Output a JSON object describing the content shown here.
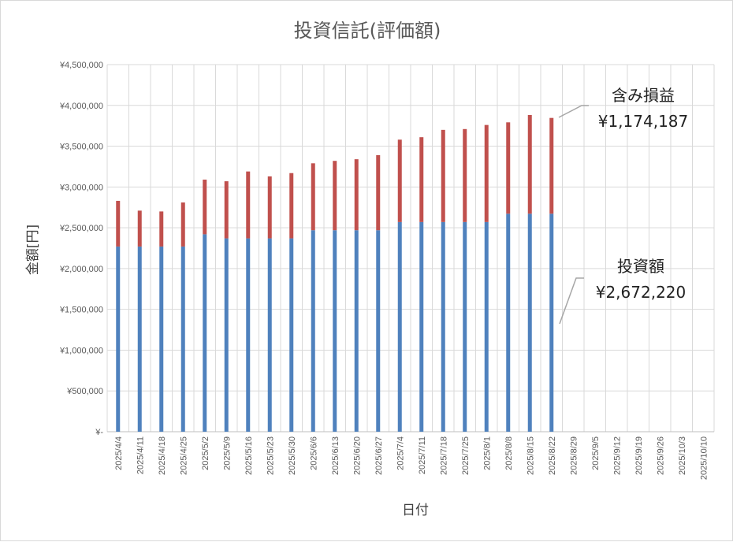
{
  "chart_data": {
    "type": "bar",
    "stacked": true,
    "title": "投資信託(評価額)",
    "xlabel": "日付",
    "ylabel": "金額[円]",
    "ylim": [
      0,
      4500000
    ],
    "yticks": [
      0,
      500000,
      1000000,
      1500000,
      2000000,
      2500000,
      3000000,
      3500000,
      4000000,
      4500000
    ],
    "ytick_labels": [
      "¥-",
      "¥500,000",
      "¥1,000,000",
      "¥1,500,000",
      "¥2,000,000",
      "¥2,500,000",
      "¥3,000,000",
      "¥3,500,000",
      "¥4,000,000",
      "¥4,500,000"
    ],
    "grid": true,
    "categories": [
      "2025/4/4",
      "2025/4/11",
      "2025/4/18",
      "2025/4/25",
      "2025/5/2",
      "2025/5/9",
      "2025/5/16",
      "2025/5/23",
      "2025/5/30",
      "2025/6/6",
      "2025/6/13",
      "2025/6/20",
      "2025/6/27",
      "2025/7/4",
      "2025/7/11",
      "2025/7/18",
      "2025/7/25",
      "2025/8/1",
      "2025/8/8",
      "2025/8/15",
      "2025/8/22",
      "2025/8/29",
      "2025/9/5",
      "2025/9/12",
      "2025/9/19",
      "2025/9/26",
      "2025/10/3",
      "2025/10/10"
    ],
    "series": [
      {
        "color": "#4f81bd",
        "values": [
          2270000,
          2270000,
          2270000,
          2270000,
          2420000,
          2370000,
          2370000,
          2370000,
          2370000,
          2470000,
          2470000,
          2470000,
          2470000,
          2570000,
          2570000,
          2570000,
          2570000,
          2570000,
          2672220,
          2672220,
          2672220,
          null,
          null,
          null,
          null,
          null,
          null,
          null
        ]
      },
      {
        "color": "#c0504d",
        "values": [
          560000,
          440000,
          430000,
          540000,
          670000,
          700000,
          820000,
          760000,
          800000,
          820000,
          850000,
          870000,
          920000,
          1010000,
          1040000,
          1130000,
          1140000,
          1190000,
          1120000,
          1210000,
          1174187,
          null,
          null,
          null,
          null,
          null,
          null,
          null
        ]
      }
    ],
    "annotations": [
      {
        "title": "含み損益",
        "value": "¥1,174,187"
      },
      {
        "title": "投資額",
        "value": "¥2,672,220"
      }
    ]
  }
}
